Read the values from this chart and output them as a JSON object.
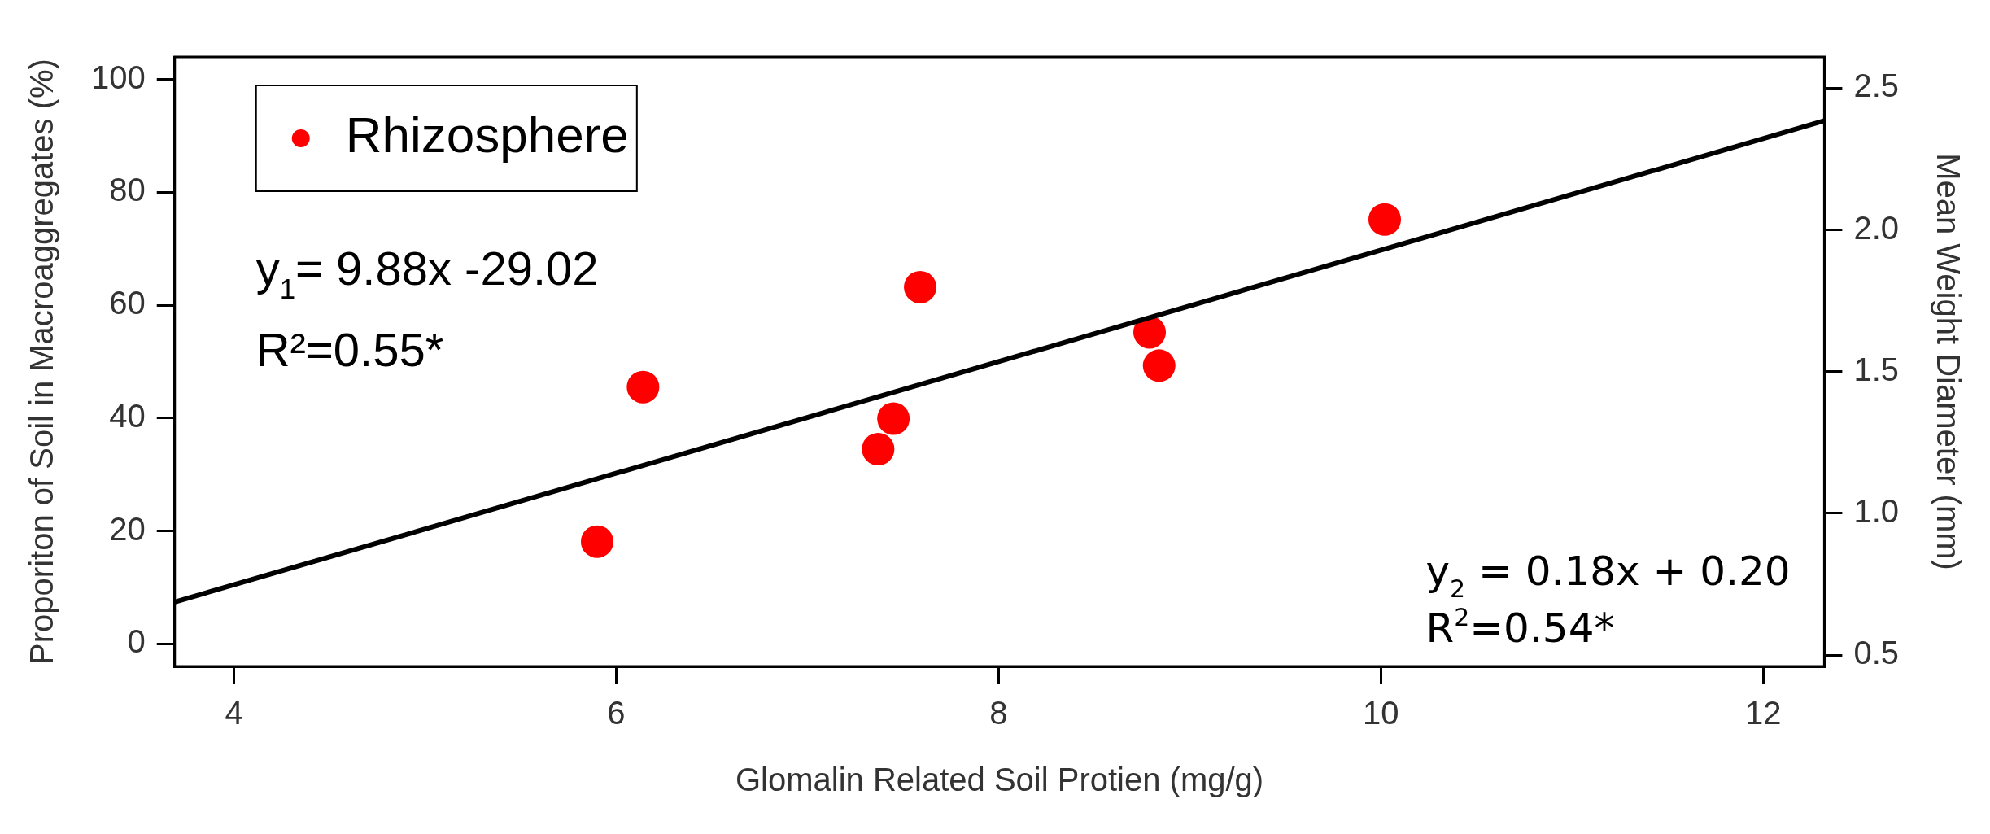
{
  "chart_data": {
    "type": "scatter",
    "xlabel": "Glomalin Related Soil Protien (mg/g)",
    "ylabel": "Proporiton of Soil in Macroaggregates (%)",
    "y2label": "Mean Weight Diameter (mm)",
    "xlim": [
      3.69,
      12.32
    ],
    "xticks": [
      4,
      6,
      8,
      10,
      12
    ],
    "ylim": [
      -4,
      104
    ],
    "yticks": [
      0,
      20,
      40,
      60,
      80,
      100
    ],
    "y2lim": [
      0.46,
      2.61
    ],
    "y2ticks": [
      {
        "value": 0.5,
        "label": "0.5"
      },
      {
        "value": 1,
        "label": "1.0"
      },
      {
        "value": 1.5,
        "label": "1.5"
      },
      {
        "value": 2,
        "label": "2.0"
      },
      {
        "value": 2.5,
        "label": "2.5"
      }
    ],
    "legend": "top left",
    "grid": false,
    "marker": "circle",
    "series": [
      {
        "name": "Rhizosphere",
        "color": "#ff0000",
        "x": [
          5.9,
          6.14,
          7.37,
          7.45,
          7.59,
          8.79,
          8.84,
          10.02
        ],
        "values": [
          18.1,
          45.5,
          34.5,
          39.9,
          63.2,
          55.2,
          49.3,
          75.2
        ]
      },
      {
        "type": "line",
        "color": "#000000",
        "line_style": "solid",
        "marker": "none",
        "x": [
          3.69,
          12.32
        ],
        "values": [
          7.4,
          92.7
        ]
      }
    ],
    "annotations": [
      "y$_{1}$= 9.88x -29.02",
      "R²=0.55*",
      "y$_{2}$ = 0.18x + 0.20",
      "R$^{2}$=0.54*"
    ]
  }
}
